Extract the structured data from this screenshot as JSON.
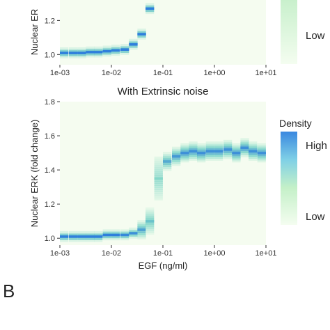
{
  "chart_data": [
    {
      "type": "heatmap",
      "title": "",
      "xlabel": "",
      "ylabel": "Nuclear ER",
      "x_scale": "log10",
      "x_ticks": [
        "1e-03",
        "1e-02",
        "1e-01",
        "1e+00",
        "1e+01"
      ],
      "y_ticks": [
        "1.0",
        "1.2"
      ],
      "xlim": [
        0.001,
        10
      ],
      "ylim": [
        0.94,
        1.32
      ],
      "legend_labels": [
        "Low"
      ],
      "peaks": [
        {
          "x": 0.001,
          "y": 1.01,
          "density": 1.0
        },
        {
          "x": 0.0015,
          "y": 1.01,
          "density": 1.0
        },
        {
          "x": 0.0022,
          "y": 1.01,
          "density": 1.0
        },
        {
          "x": 0.0032,
          "y": 1.015,
          "density": 1.0
        },
        {
          "x": 0.0046,
          "y": 1.015,
          "density": 1.0
        },
        {
          "x": 0.0068,
          "y": 1.02,
          "density": 1.0
        },
        {
          "x": 0.01,
          "y": 1.025,
          "density": 1.0
        },
        {
          "x": 0.015,
          "y": 1.03,
          "density": 1.0
        },
        {
          "x": 0.022,
          "y": 1.06,
          "density": 1.0
        },
        {
          "x": 0.032,
          "y": 1.12,
          "density": 1.0
        },
        {
          "x": 0.046,
          "y": 1.27,
          "density": 1.0
        }
      ]
    },
    {
      "type": "heatmap",
      "title": "With Extrinsic noise",
      "xlabel": "EGF (ng/ml)",
      "ylabel": "Nuclear ERK (fold change)",
      "x_scale": "log10",
      "x_ticks": [
        "1e-03",
        "1e-02",
        "1e-01",
        "1e+00",
        "1e+01"
      ],
      "y_ticks": [
        "1.0",
        "1.2",
        "1.4",
        "1.6",
        "1.8"
      ],
      "xlim": [
        0.001,
        10
      ],
      "ylim": [
        0.96,
        1.8
      ],
      "legend_title": "Density",
      "legend_labels": [
        "High",
        "Low"
      ],
      "peaks": [
        {
          "x": 0.001,
          "y": 1.01,
          "spread": 0.005,
          "density": 1.0
        },
        {
          "x": 0.0015,
          "y": 1.01,
          "spread": 0.005,
          "density": 1.0
        },
        {
          "x": 0.0022,
          "y": 1.01,
          "spread": 0.005,
          "density": 1.0
        },
        {
          "x": 0.0032,
          "y": 1.01,
          "spread": 0.006,
          "density": 1.0
        },
        {
          "x": 0.0046,
          "y": 1.01,
          "spread": 0.006,
          "density": 1.0
        },
        {
          "x": 0.0068,
          "y": 1.02,
          "spread": 0.007,
          "density": 1.0
        },
        {
          "x": 0.01,
          "y": 1.02,
          "spread": 0.008,
          "density": 1.0
        },
        {
          "x": 0.015,
          "y": 1.02,
          "spread": 0.01,
          "density": 0.95
        },
        {
          "x": 0.022,
          "y": 1.03,
          "spread": 0.015,
          "density": 0.9
        },
        {
          "x": 0.032,
          "y": 1.05,
          "spread": 0.03,
          "density": 0.8
        },
        {
          "x": 0.046,
          "y": 1.1,
          "spread": 0.06,
          "density": 0.6
        },
        {
          "x": 0.068,
          "y": 1.35,
          "spread": 0.12,
          "density": 0.45
        },
        {
          "x": 0.1,
          "y": 1.45,
          "spread": 0.04,
          "density": 0.75
        },
        {
          "x": 0.15,
          "y": 1.48,
          "spread": 0.035,
          "density": 0.85
        },
        {
          "x": 0.22,
          "y": 1.5,
          "spread": 0.03,
          "density": 0.9
        },
        {
          "x": 0.32,
          "y": 1.51,
          "spread": 0.03,
          "density": 0.9
        },
        {
          "x": 0.46,
          "y": 1.5,
          "spread": 0.03,
          "density": 0.9
        },
        {
          "x": 0.68,
          "y": 1.51,
          "spread": 0.03,
          "density": 0.9
        },
        {
          "x": 1.0,
          "y": 1.51,
          "spread": 0.03,
          "density": 0.9
        },
        {
          "x": 1.5,
          "y": 1.52,
          "spread": 0.03,
          "density": 0.9
        },
        {
          "x": 2.2,
          "y": 1.5,
          "spread": 0.03,
          "density": 0.9
        },
        {
          "x": 3.2,
          "y": 1.53,
          "spread": 0.03,
          "density": 0.9
        },
        {
          "x": 4.6,
          "y": 1.51,
          "spread": 0.03,
          "density": 0.9
        },
        {
          "x": 6.8,
          "y": 1.5,
          "spread": 0.03,
          "density": 0.9
        }
      ]
    }
  ],
  "panel_label": "B",
  "colors": {
    "background": "#f5fcf0",
    "low": "#eefbe8",
    "mid": "#79d4c6",
    "high": "#2f7fdc"
  }
}
